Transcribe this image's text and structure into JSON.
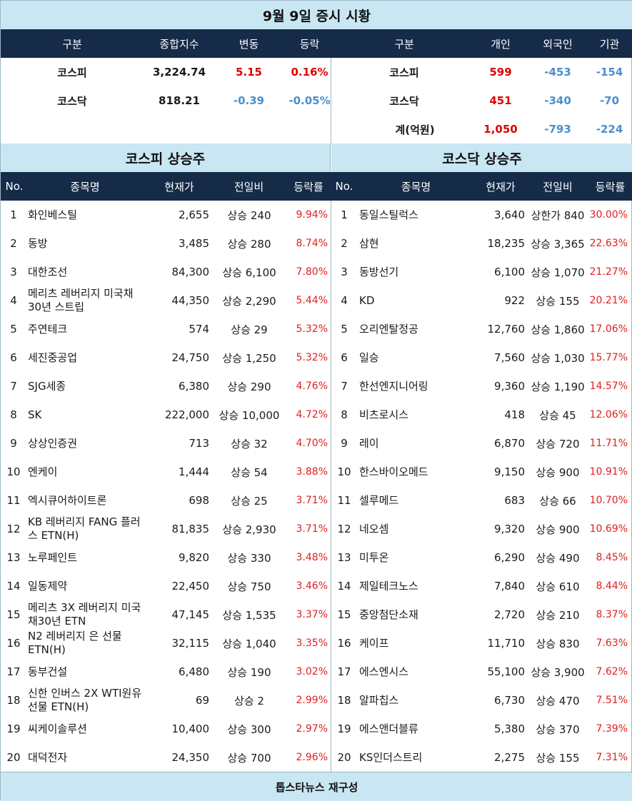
{
  "title": "9월 9일 증시 시황",
  "index_table": {
    "headers": [
      "구분",
      "종합지수",
      "변동",
      "등락"
    ],
    "rows": [
      {
        "name": "코스피",
        "index": "3,224.74",
        "change": "5.15",
        "rate": "0.16%"
      },
      {
        "name": "코스닥",
        "index": "818.21",
        "change": "-0.39",
        "rate": "-0.05%"
      }
    ]
  },
  "investor_table": {
    "headers": [
      "구분",
      "개인",
      "외국인",
      "기관"
    ],
    "rows": [
      {
        "name": "코스피",
        "individual": "599",
        "foreign": "-453",
        "institution": "-154"
      },
      {
        "name": "코스닥",
        "individual": "451",
        "foreign": "-340",
        "institution": "-70"
      },
      {
        "name": "계(억원)",
        "individual": "1,050",
        "foreign": "-793",
        "institution": "-224"
      }
    ]
  },
  "kospi_section": {
    "title": "코스피 상승주",
    "headers": [
      "No.",
      "종목명",
      "현재가",
      "전일비",
      "등락률"
    ],
    "rows": [
      {
        "no": "1",
        "name": "화인베스틸",
        "price": "2,655",
        "diff": "상승 240",
        "rate": "9.94%"
      },
      {
        "no": "2",
        "name": "동방",
        "price": "3,485",
        "diff": "상승 280",
        "rate": "8.74%"
      },
      {
        "no": "3",
        "name": "대한조선",
        "price": "84,300",
        "diff": "상승 6,100",
        "rate": "7.80%"
      },
      {
        "no": "4",
        "name": "메리츠 레버리지 미국채30년 스트립",
        "price": "44,350",
        "diff": "상승 2,290",
        "rate": "5.44%"
      },
      {
        "no": "5",
        "name": "주연테크",
        "price": "574",
        "diff": "상승 29",
        "rate": "5.32%"
      },
      {
        "no": "6",
        "name": "세진중공업",
        "price": "24,750",
        "diff": "상승 1,250",
        "rate": "5.32%"
      },
      {
        "no": "7",
        "name": "SJG세종",
        "price": "6,380",
        "diff": "상승 290",
        "rate": "4.76%"
      },
      {
        "no": "8",
        "name": "SK",
        "price": "222,000",
        "diff": "상승 10,000",
        "rate": "4.72%"
      },
      {
        "no": "9",
        "name": "상상인증권",
        "price": "713",
        "diff": "상승 32",
        "rate": "4.70%"
      },
      {
        "no": "10",
        "name": "엔케이",
        "price": "1,444",
        "diff": "상승 54",
        "rate": "3.88%"
      },
      {
        "no": "11",
        "name": "엑시큐어하이트론",
        "price": "698",
        "diff": "상승 25",
        "rate": "3.71%"
      },
      {
        "no": "12",
        "name": "KB 레버리지 FANG 플러스 ETN(H)",
        "price": "81,835",
        "diff": "상승 2,930",
        "rate": "3.71%"
      },
      {
        "no": "13",
        "name": "노루페인트",
        "price": "9,820",
        "diff": "상승 330",
        "rate": "3.48%"
      },
      {
        "no": "14",
        "name": "일동제약",
        "price": "22,450",
        "diff": "상승 750",
        "rate": "3.46%"
      },
      {
        "no": "15",
        "name": "메리츠 3X 레버리지 미국채30년 ETN",
        "price": "47,145",
        "diff": "상승 1,535",
        "rate": "3.37%"
      },
      {
        "no": "16",
        "name": "N2 레버리지 은 선물 ETN(H)",
        "price": "32,115",
        "diff": "상승 1,040",
        "rate": "3.35%"
      },
      {
        "no": "17",
        "name": "동부건설",
        "price": "6,480",
        "diff": "상승 190",
        "rate": "3.02%"
      },
      {
        "no": "18",
        "name": "신한 인버스 2X WTI원유 선물 ETN(H)",
        "price": "69",
        "diff": "상승 2",
        "rate": "2.99%"
      },
      {
        "no": "19",
        "name": "씨케이솔루션",
        "price": "10,400",
        "diff": "상승 300",
        "rate": "2.97%"
      },
      {
        "no": "20",
        "name": "대덕전자",
        "price": "24,350",
        "diff": "상승 700",
        "rate": "2.96%"
      }
    ]
  },
  "kosdaq_section": {
    "title": "코스닥 상승주",
    "headers": [
      "No.",
      "종목명",
      "현재가",
      "전일비",
      "등락률"
    ],
    "rows": [
      {
        "no": "1",
        "name": "동일스틸럭스",
        "price": "3,640",
        "diff": "상한가 840",
        "rate": "30.00%"
      },
      {
        "no": "2",
        "name": "삼현",
        "price": "18,235",
        "diff": "상승 3,365",
        "rate": "22.63%"
      },
      {
        "no": "3",
        "name": "동방선기",
        "price": "6,100",
        "diff": "상승 1,070",
        "rate": "21.27%"
      },
      {
        "no": "4",
        "name": "KD",
        "price": "922",
        "diff": "상승 155",
        "rate": "20.21%"
      },
      {
        "no": "5",
        "name": "오리엔탈정공",
        "price": "12,760",
        "diff": "상승 1,860",
        "rate": "17.06%"
      },
      {
        "no": "6",
        "name": "일승",
        "price": "7,560",
        "diff": "상승 1,030",
        "rate": "15.77%"
      },
      {
        "no": "7",
        "name": "한선엔지니어링",
        "price": "9,360",
        "diff": "상승 1,190",
        "rate": "14.57%"
      },
      {
        "no": "8",
        "name": "비츠로시스",
        "price": "418",
        "diff": "상승 45",
        "rate": "12.06%"
      },
      {
        "no": "9",
        "name": "레이",
        "price": "6,870",
        "diff": "상승 720",
        "rate": "11.71%"
      },
      {
        "no": "10",
        "name": "한스바이오메드",
        "price": "9,150",
        "diff": "상승 900",
        "rate": "10.91%"
      },
      {
        "no": "11",
        "name": "셀루메드",
        "price": "683",
        "diff": "상승 66",
        "rate": "10.70%"
      },
      {
        "no": "12",
        "name": "네오셈",
        "price": "9,320",
        "diff": "상승 900",
        "rate": "10.69%"
      },
      {
        "no": "13",
        "name": "미투온",
        "price": "6,290",
        "diff": "상승 490",
        "rate": "8.45%"
      },
      {
        "no": "14",
        "name": "제일테크노스",
        "price": "7,840",
        "diff": "상승 610",
        "rate": "8.44%"
      },
      {
        "no": "15",
        "name": "중앙첨단소재",
        "price": "2,720",
        "diff": "상승 210",
        "rate": "8.37%"
      },
      {
        "no": "16",
        "name": "케이프",
        "price": "11,710",
        "diff": "상승 830",
        "rate": "7.63%"
      },
      {
        "no": "17",
        "name": "에스엔시스",
        "price": "55,100",
        "diff": "상승 3,900",
        "rate": "7.62%"
      },
      {
        "no": "18",
        "name": "알파칩스",
        "price": "6,730",
        "diff": "상승 470",
        "rate": "7.51%"
      },
      {
        "no": "19",
        "name": "에스앤더블류",
        "price": "5,380",
        "diff": "상승 370",
        "rate": "7.39%"
      },
      {
        "no": "20",
        "name": "KS인더스트리",
        "price": "2,275",
        "diff": "상승 155",
        "rate": "7.31%"
      }
    ]
  },
  "footer": "톱스타뉴스 재구성",
  "colors": {
    "navy": "#152b48",
    "light_blue": "#c9e6f3",
    "up_red": "#e00000",
    "down_blue": "#4b8fcc"
  }
}
